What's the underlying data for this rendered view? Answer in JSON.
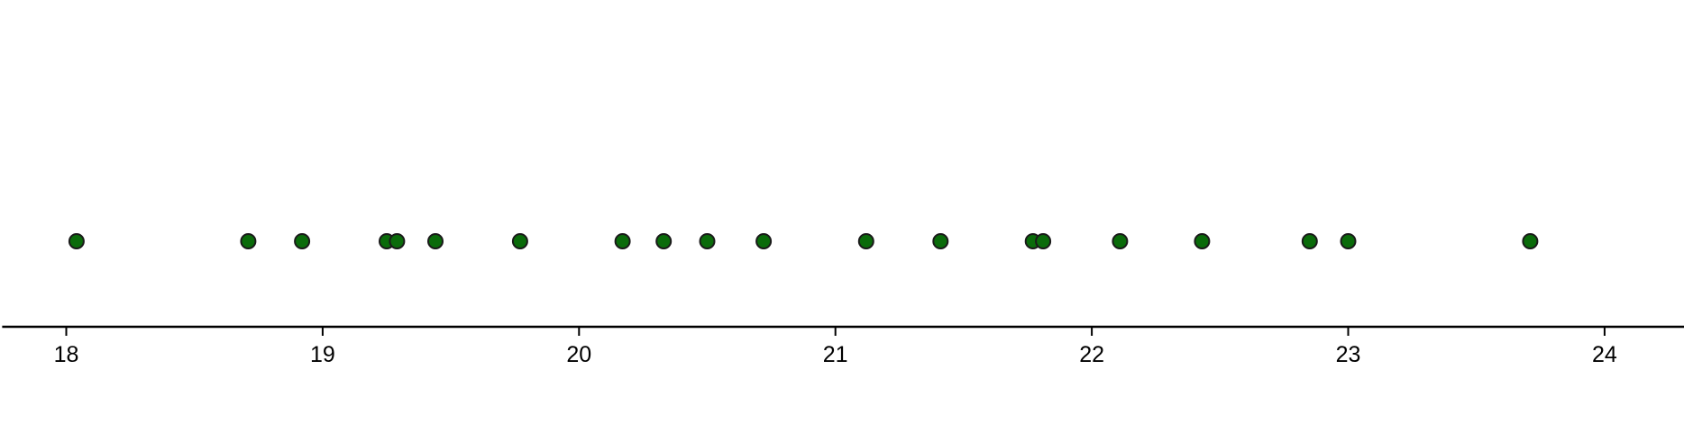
{
  "chart_data": {
    "type": "scatter",
    "title": "",
    "xlabel": "",
    "ylabel": "",
    "xlim": [
      17.75,
      24.33
    ],
    "x_ticks": [
      18,
      19,
      20,
      21,
      22,
      23,
      24
    ],
    "x_tick_labels": [
      "18",
      "19",
      "20",
      "21",
      "22",
      "23",
      "24"
    ],
    "grid": false,
    "legend": "none",
    "series": [
      {
        "color": "#0a6b0a",
        "edge_color": "#1a1a1a",
        "x": [
          18.04,
          18.71,
          18.92,
          19.25,
          19.29,
          19.44,
          19.77,
          20.17,
          20.33,
          20.5,
          20.72,
          21.12,
          21.41,
          21.77,
          21.81,
          22.11,
          22.43,
          22.85,
          23.0,
          23.71
        ],
        "y": [
          0,
          0,
          0,
          0,
          0,
          0,
          0,
          0,
          0,
          0,
          0,
          0,
          0,
          0,
          0,
          0,
          0,
          0,
          0,
          0
        ]
      }
    ]
  }
}
